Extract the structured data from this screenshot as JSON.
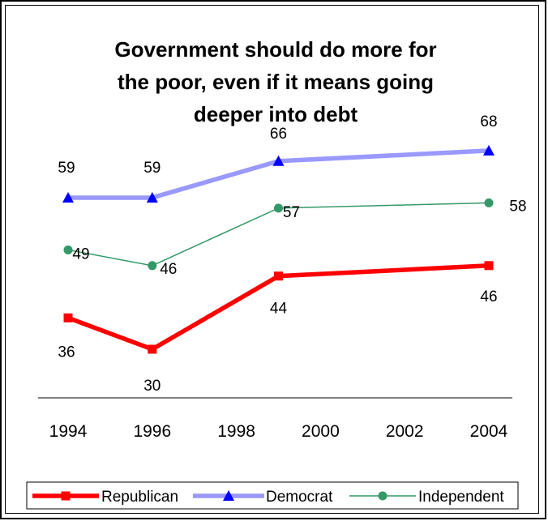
{
  "chart_data": {
    "type": "line",
    "title_lines": [
      "Government should do more for",
      "the poor, even if it means going",
      "deeper into debt"
    ],
    "x_ticks": [
      "1994",
      "1996",
      "1998",
      "2000",
      "2002",
      "2004"
    ],
    "xlim": [
      1994,
      2004
    ],
    "grid": false,
    "legend_position": "bottom",
    "series": [
      {
        "name": "Republican",
        "color": "#ff0000",
        "marker": "square",
        "x": [
          1994,
          1996,
          1999,
          2004
        ],
        "values": [
          36,
          30,
          44,
          46
        ]
      },
      {
        "name": "Democrat",
        "color": "#9999ff",
        "marker": "triangle",
        "x": [
          1994,
          1996,
          1999,
          2004
        ],
        "values": [
          59,
          59,
          66,
          68
        ]
      },
      {
        "name": "Independent",
        "color": "#339966",
        "marker": "circle",
        "x": [
          1994,
          1996,
          1999,
          2004
        ],
        "values": [
          49,
          46,
          57,
          58
        ]
      }
    ]
  }
}
